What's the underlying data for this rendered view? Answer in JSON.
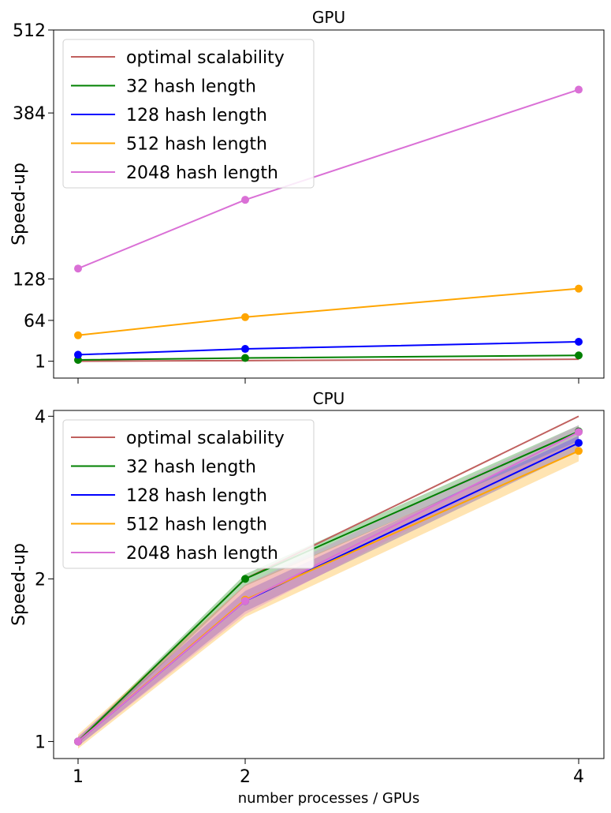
{
  "chart_data": [
    {
      "type": "line",
      "title": "GPU",
      "xlabel": "",
      "ylabel": "Speed-up",
      "x": [
        1,
        2,
        4
      ],
      "xticks": [
        1,
        2,
        4
      ],
      "ylim": [
        -25,
        512
      ],
      "yticks": [
        1,
        64,
        128,
        384,
        512
      ],
      "ytick_labels": [
        "1",
        "64",
        "128",
        "384",
        "512"
      ],
      "legend_placement": "top-left",
      "series": [
        {
          "name": "optimal scalability",
          "color": "#c0605e",
          "values": [
            1,
            2,
            4
          ],
          "markers": false
        },
        {
          "name": "32 hash length",
          "color": "#008000",
          "values": [
            3,
            6,
            10
          ],
          "markers": true
        },
        {
          "name": "128 hash length",
          "color": "#0000ff",
          "values": [
            11,
            20,
            31
          ],
          "markers": true
        },
        {
          "name": "512 hash length",
          "color": "#ffa500",
          "values": [
            41,
            69,
            113
          ],
          "markers": true
        },
        {
          "name": "2048 hash length",
          "color": "#da70d6",
          "values": [
            144,
            250,
            420
          ],
          "markers": true
        }
      ]
    },
    {
      "type": "line",
      "title": "CPU",
      "xlabel": "number processes / GPUs",
      "ylabel": "Speed-up",
      "x": [
        1,
        2,
        4
      ],
      "xticks": [
        1,
        2,
        4
      ],
      "ylim": [
        0.93,
        4.1
      ],
      "yticks": [
        1,
        2,
        4
      ],
      "ytick_labels": [
        "1",
        "2",
        "4"
      ],
      "y_scale": "log2",
      "legend_placement": "top-left",
      "series": [
        {
          "name": "optimal scalability",
          "color": "#c0605e",
          "values": [
            1,
            2,
            4
          ],
          "markers": false
        },
        {
          "name": "32 hash length",
          "color": "#008000",
          "values": [
            1,
            2.0,
            3.75
          ],
          "band_lower": [
            0.99,
            1.94,
            3.6
          ],
          "band_upper": [
            1.01,
            2.04,
            3.85
          ],
          "markers": true
        },
        {
          "name": "128 hash length",
          "color": "#0000ff",
          "values": [
            1,
            1.82,
            3.57
          ],
          "band_lower": [
            0.98,
            1.74,
            3.45
          ],
          "band_upper": [
            1.02,
            1.9,
            3.68
          ],
          "markers": true
        },
        {
          "name": "512 hash length",
          "color": "#ffa500",
          "values": [
            1,
            1.83,
            3.45
          ],
          "band_lower": [
            0.97,
            1.7,
            3.3
          ],
          "band_upper": [
            1.03,
            1.95,
            3.6
          ],
          "markers": true
        },
        {
          "name": "2048 hash length",
          "color": "#da70d6",
          "values": [
            1,
            1.82,
            3.74
          ],
          "band_lower": [
            0.98,
            1.72,
            3.6
          ],
          "band_upper": [
            1.02,
            1.95,
            3.85
          ],
          "markers": true
        }
      ]
    }
  ]
}
